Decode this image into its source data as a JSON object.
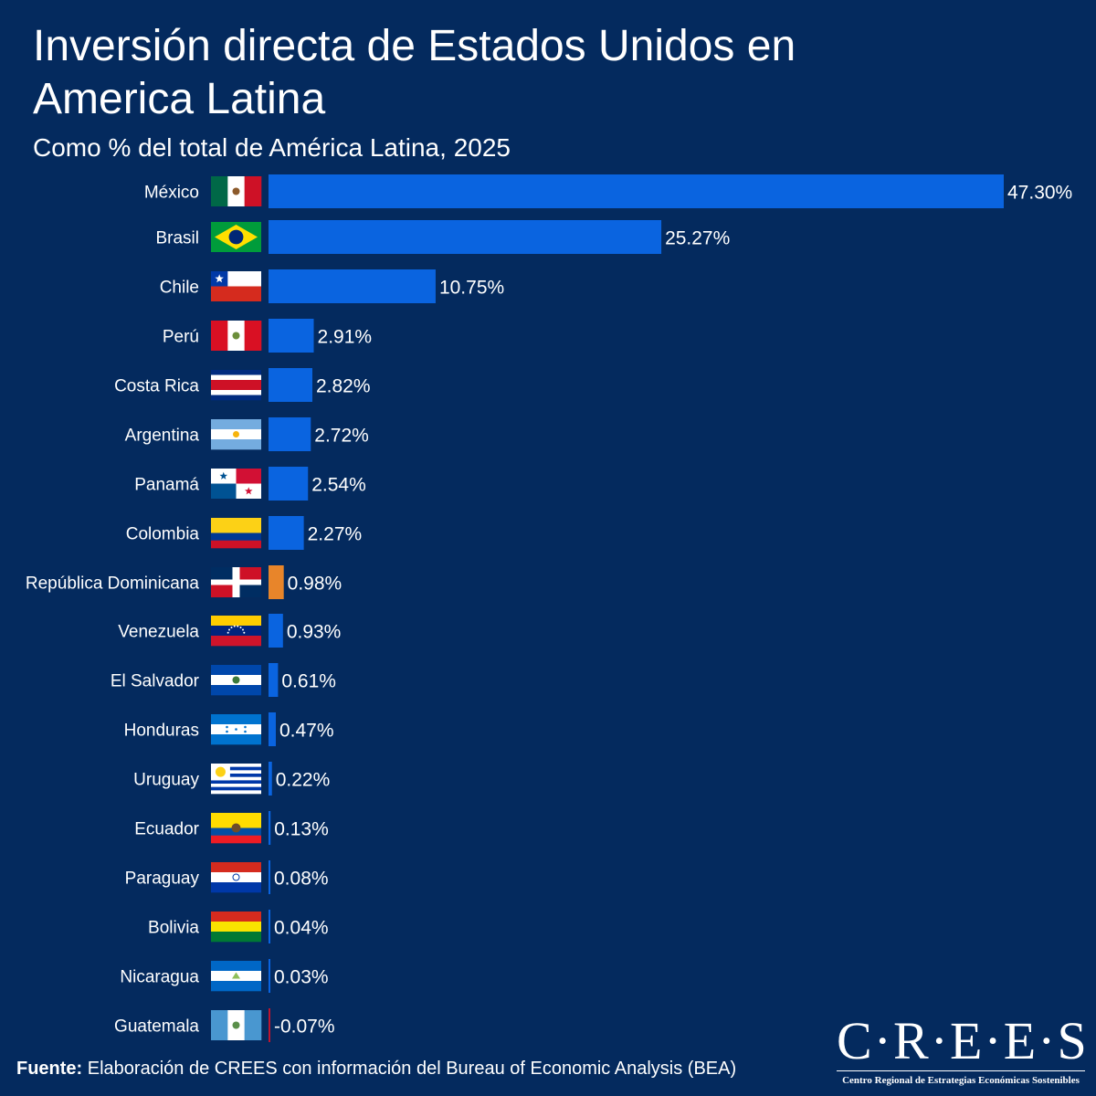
{
  "title": "Inversión directa de Estados Unidos en America Latina",
  "subtitle": "Como % del total de América Latina, 2025",
  "footer": {
    "label": "Fuente:",
    "text": " Elaboración de CREES con información del Bureau of Economic Analysis (BEA)"
  },
  "logo": {
    "mark": "C·R·E·E·S",
    "tagline": "Centro Regional de Estrategias Económicas Sostenibles"
  },
  "colors": {
    "background": "#042a5e",
    "bar": "#0a64e0",
    "highlight": "#e8852a",
    "negative": "#c0152f"
  },
  "chart_data": {
    "type": "bar",
    "orientation": "horizontal",
    "value_format": "percent",
    "grid": false,
    "categories": [
      "México",
      "Brasil",
      "Chile",
      "Perú",
      "Costa Rica",
      "Argentina",
      "Panamá",
      "Colombia",
      "República Dominicana",
      "Venezuela",
      "El Salvador",
      "Honduras",
      "Uruguay",
      "Ecuador",
      "Paraguay",
      "Bolivia",
      "Nicaragua",
      "Guatemala"
    ],
    "values": [
      47.3,
      25.27,
      10.75,
      2.91,
      2.82,
      2.72,
      2.54,
      2.27,
      0.98,
      0.93,
      0.61,
      0.47,
      0.22,
      0.13,
      0.08,
      0.04,
      0.03,
      -0.07
    ],
    "labels": [
      "47.30%",
      "25.27%",
      "10.75%",
      "2.91%",
      "2.82%",
      "2.72%",
      "2.54%",
      "2.27%",
      "0.98%",
      "0.93%",
      "0.61%",
      "0.47%",
      "0.22%",
      "0.13%",
      "0.08%",
      "0.04%",
      "0.03%",
      "-0.07%"
    ],
    "highlighted_category": "República Dominicana",
    "flags": [
      "flag-mexico-icon",
      "flag-brasil-icon",
      "flag-chile-icon",
      "flag-peru-icon",
      "flag-costa-rica-icon",
      "flag-argentina-icon",
      "flag-panama-icon",
      "flag-colombia-icon",
      "flag-republica-dominicana-icon",
      "flag-venezuela-icon",
      "flag-el-salvador-icon",
      "flag-honduras-icon",
      "flag-uruguay-icon",
      "flag-ecuador-icon",
      "flag-paraguay-icon",
      "flag-bolivia-icon",
      "flag-nicaragua-icon",
      "flag-guatemala-icon"
    ],
    "xlim": [
      -0.07,
      47.3
    ],
    "xlabel": "",
    "ylabel": ""
  }
}
